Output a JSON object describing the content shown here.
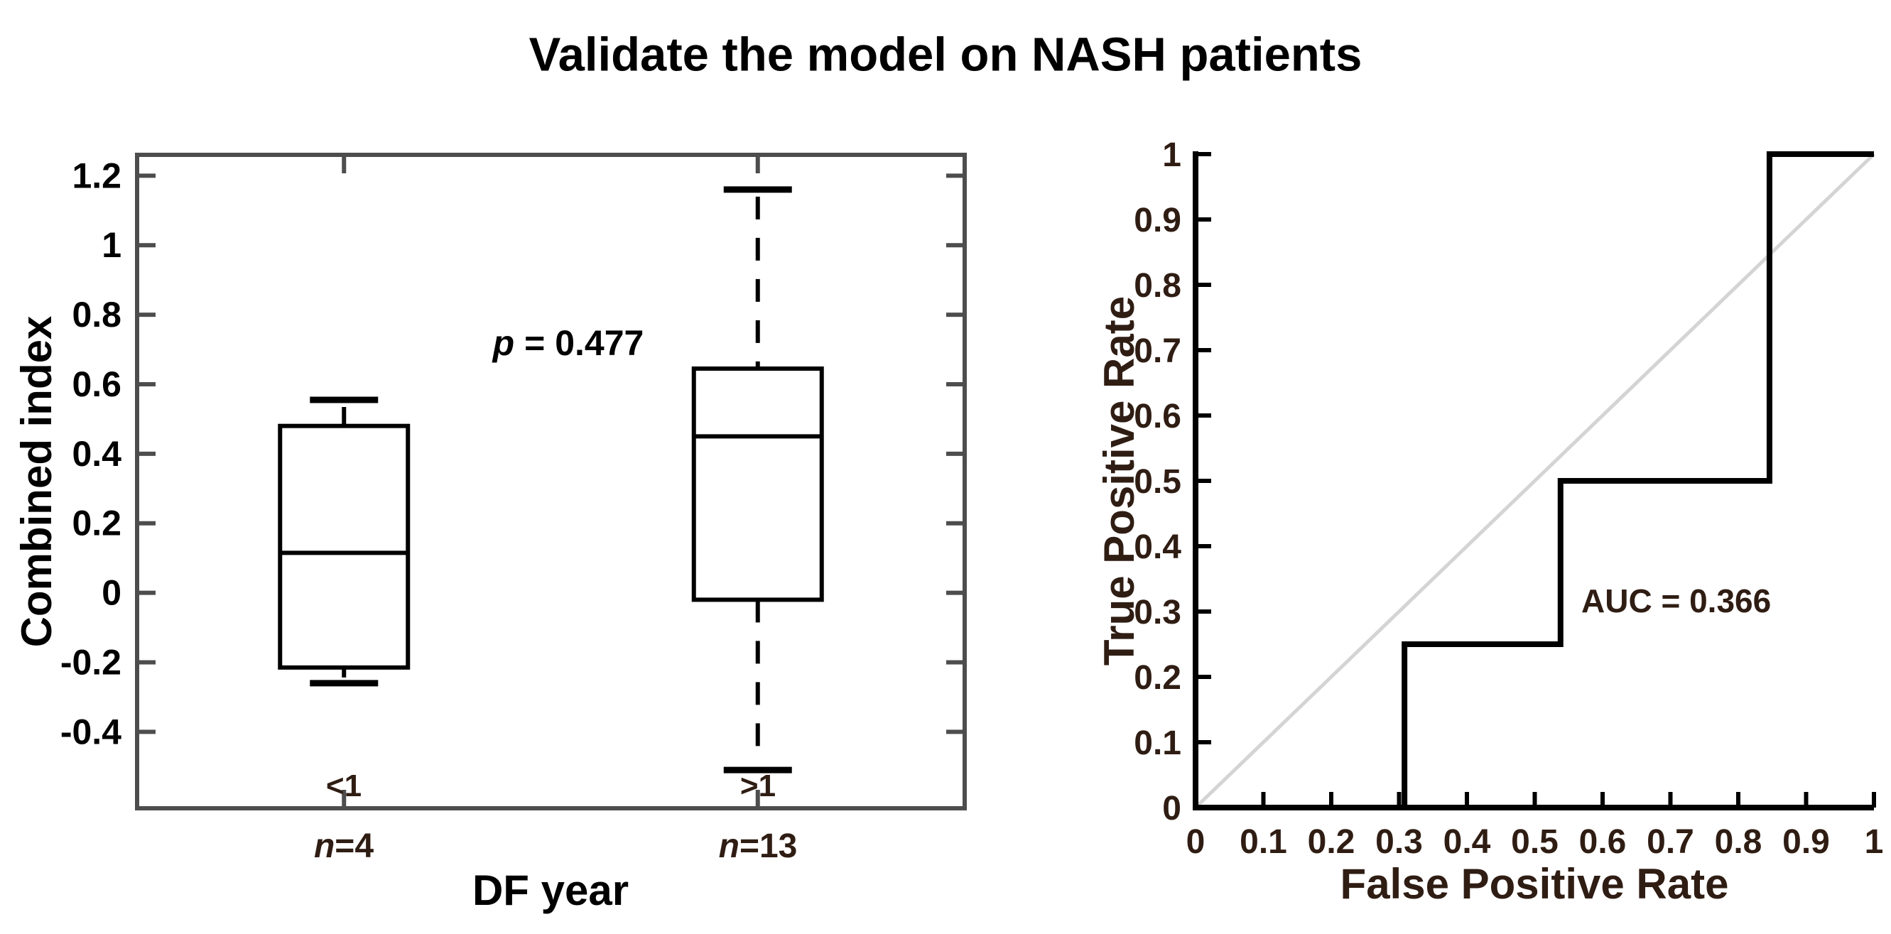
{
  "figure": {
    "title": "Validate the model on NASH patients",
    "background": "#ffffff",
    "colors": {
      "black_text": "#000000",
      "dark_tick_text": "#2f1d13",
      "box_frame_gray": "#4d4d4d",
      "line_black": "#000000",
      "diagonal_gray": "#d4d4d4"
    }
  },
  "chart_data": [
    {
      "type": "boxplot",
      "title": "",
      "xlabel": "DF year",
      "ylabel": "Combined index",
      "xlim": [
        0.5,
        2.5
      ],
      "ylim": [
        -0.62,
        1.26
      ],
      "grid": false,
      "yticks": [
        {
          "v": 1.2,
          "label": "1.2"
        },
        {
          "v": 1.0,
          "label": "1"
        },
        {
          "v": 0.8,
          "label": "0.8"
        },
        {
          "v": 0.6,
          "label": "0.6"
        },
        {
          "v": 0.4,
          "label": "0.4"
        },
        {
          "v": 0.2,
          "label": "0.2"
        },
        {
          "v": 0.0,
          "label": "0"
        },
        {
          "v": -0.2,
          "label": "-0.2"
        },
        {
          "v": -0.4,
          "label": "-0.4"
        }
      ],
      "annotation": {
        "symbol": "p",
        "rest": " = 0.477"
      },
      "groups": [
        {
          "position": 1,
          "label": "<1",
          "n": {
            "symbol": "n",
            "rest": "=4"
          },
          "whisker_low": -0.26,
          "q1": -0.215,
          "median": 0.115,
          "q3": 0.48,
          "whisker_high": 0.555,
          "whisker_style": "solid"
        },
        {
          "position": 2,
          "label": ">1",
          "n": {
            "symbol": "n",
            "rest": "=13"
          },
          "whisker_low": -0.51,
          "q1": -0.02,
          "median": 0.45,
          "q3": 0.645,
          "whisker_high": 1.16,
          "whisker_style": "dashed"
        }
      ]
    },
    {
      "type": "line",
      "title": "",
      "xlabel": "False Positive Rate",
      "ylabel": "True Positive Rate",
      "xlim": [
        0,
        1
      ],
      "ylim": [
        0,
        1
      ],
      "grid": false,
      "annotation": "AUC = 0.366",
      "auc": 0.366,
      "xticks": [
        {
          "v": 0.0,
          "label": "0"
        },
        {
          "v": 0.1,
          "label": "0.1"
        },
        {
          "v": 0.2,
          "label": "0.2"
        },
        {
          "v": 0.3,
          "label": "0.3"
        },
        {
          "v": 0.4,
          "label": "0.4"
        },
        {
          "v": 0.5,
          "label": "0.5"
        },
        {
          "v": 0.6,
          "label": "0.6"
        },
        {
          "v": 0.7,
          "label": "0.7"
        },
        {
          "v": 0.8,
          "label": "0.8"
        },
        {
          "v": 0.9,
          "label": "0.9"
        },
        {
          "v": 1.0,
          "label": "1"
        }
      ],
      "yticks": [
        {
          "v": 0.0,
          "label": "0"
        },
        {
          "v": 0.1,
          "label": "0.1"
        },
        {
          "v": 0.2,
          "label": "0.2"
        },
        {
          "v": 0.3,
          "label": "0.3"
        },
        {
          "v": 0.4,
          "label": "0.4"
        },
        {
          "v": 0.5,
          "label": "0.5"
        },
        {
          "v": 0.6,
          "label": "0.6"
        },
        {
          "v": 0.7,
          "label": "0.7"
        },
        {
          "v": 0.8,
          "label": "0.8"
        },
        {
          "v": 0.9,
          "label": "0.9"
        },
        {
          "v": 1.0,
          "label": "1"
        }
      ],
      "series": [
        {
          "name": "roc-curve",
          "color": "#000000",
          "x": [
            0,
            0.308,
            0.308,
            0.538,
            0.538,
            0.846,
            0.846,
            1.0
          ],
          "y": [
            0,
            0,
            0.25,
            0.25,
            0.5,
            0.5,
            1.0,
            1.0
          ]
        },
        {
          "name": "chance-diagonal",
          "color": "#d4d4d4",
          "x": [
            0,
            1
          ],
          "y": [
            0,
            1
          ]
        }
      ]
    }
  ]
}
